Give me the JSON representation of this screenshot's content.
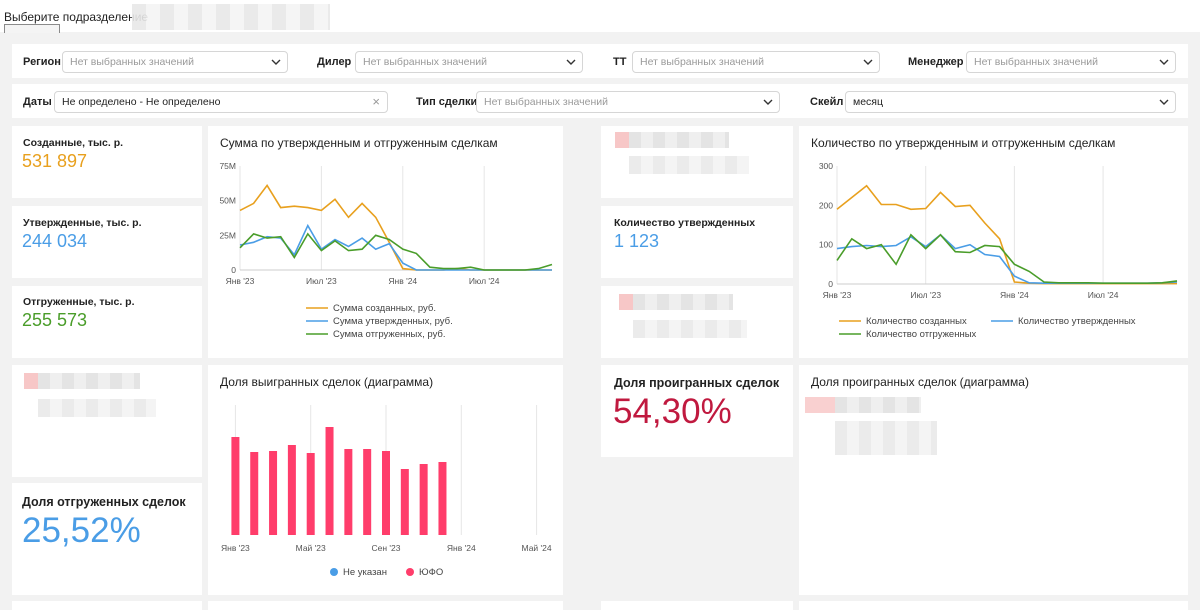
{
  "top": {
    "label": "Выберите подразделение"
  },
  "filters": {
    "region": {
      "label": "Регион",
      "placeholder": "Нет выбранных значений"
    },
    "dealer": {
      "label": "Дилер",
      "placeholder": "Нет выбранных значений"
    },
    "tt": {
      "label": "ТТ",
      "placeholder": "Нет выбранных значений"
    },
    "manager": {
      "label": "Менеджер",
      "placeholder": "Нет выбранных значений"
    },
    "dates": {
      "label": "Даты",
      "value": "Не определено - Не определено"
    },
    "deal_type": {
      "label": "Тип сделки",
      "placeholder": "Нет выбранных значений"
    },
    "scale": {
      "label": "Скейл",
      "value": "месяц"
    }
  },
  "kpi": {
    "created": {
      "title": "Созданные, тыс. р.",
      "value": "531 897",
      "color": "#e8a01e"
    },
    "approved": {
      "title": "Утвержденные, тыс. р.",
      "value": "244 034",
      "color": "#4a9de6"
    },
    "shipped": {
      "title": "Отгруженные, тыс. р.",
      "value": "255 573",
      "color": "#4a9d2a"
    },
    "approved_count": {
      "title": "Количество утвержденных",
      "value": "1 123",
      "color": "#4a9de6"
    },
    "shipped_share": {
      "title": "Доля отгруженных сделок",
      "value": "25,52%",
      "color": "#4a9de6"
    },
    "lost_share": {
      "title": "Доля проигранных сделок",
      "value": "54,30%",
      "color": "#c0193f"
    }
  },
  "charts": {
    "sum_title": "Сумма по утвержденным и отгруженным сделкам",
    "count_title": "Количество по утвержденным и отгруженным сделкам",
    "won_title": "Доля выигранных сделок (диаграмма)",
    "lost_title": "Доля проигранных сделок (диаграмма)"
  },
  "chart_data": [
    {
      "type": "line",
      "title": "Сумма по утвержденным и отгруженным сделкам",
      "y_ticks": [
        "0",
        "25M",
        "50M",
        "75M"
      ],
      "x_ticks": [
        "Янв '23",
        "Июл '23",
        "Янв '24",
        "Июл '24"
      ],
      "ylim": [
        0,
        75
      ],
      "n": 24,
      "series": [
        {
          "name": "Сумма созданных, руб.",
          "color": "#e8a01e",
          "values": [
            43,
            48,
            61,
            45,
            46,
            45,
            43,
            51,
            38,
            48,
            38,
            20,
            1,
            0,
            0,
            0,
            1,
            0,
            0,
            0,
            0,
            0,
            0,
            0
          ]
        },
        {
          "name": "Сумма утвержденных, руб.",
          "color": "#4a9de6",
          "values": [
            18,
            20,
            24,
            23,
            11,
            32,
            15,
            22,
            17,
            23,
            15,
            19,
            5,
            0,
            0,
            0,
            0,
            0,
            0,
            0,
            0,
            0,
            0,
            0
          ]
        },
        {
          "name": "Сумма отгруженных, руб.",
          "color": "#4a9d2a",
          "values": [
            16,
            26,
            23,
            24,
            9,
            26,
            14,
            21,
            14,
            15,
            25,
            22,
            15,
            12,
            2,
            1,
            1,
            2,
            0,
            0,
            0,
            0,
            1,
            4
          ]
        }
      ]
    },
    {
      "type": "line",
      "title": "Количество по утвержденным и отгруженным сделкам",
      "y_ticks": [
        "0",
        "100",
        "200",
        "300"
      ],
      "x_ticks": [
        "Янв '23",
        "Июл '23",
        "Янв '24",
        "Июл '24"
      ],
      "ylim": [
        0,
        300
      ],
      "n": 24,
      "series": [
        {
          "name": "Количество созданных",
          "color": "#e8a01e",
          "values": [
            190,
            220,
            250,
            202,
            202,
            190,
            192,
            233,
            197,
            200,
            155,
            115,
            5,
            2,
            1,
            1,
            1,
            1,
            1,
            1,
            1,
            1,
            1,
            1
          ]
        },
        {
          "name": "Количество утвержденных",
          "color": "#4a9de6",
          "values": [
            90,
            95,
            98,
            95,
            98,
            120,
            95,
            125,
            90,
            100,
            75,
            70,
            20,
            3,
            2,
            2,
            2,
            2,
            2,
            2,
            2,
            2,
            3,
            5
          ]
        },
        {
          "name": "Количество отгруженных",
          "color": "#4a9d2a",
          "values": [
            60,
            115,
            90,
            100,
            50,
            125,
            90,
            125,
            82,
            80,
            98,
            95,
            50,
            32,
            5,
            3,
            3,
            3,
            2,
            2,
            2,
            2,
            3,
            8
          ]
        }
      ]
    },
    {
      "type": "bar",
      "title": "Доля выигранных сделок (диаграмма)",
      "x_ticks": [
        "Янв '23",
        "Май '23",
        "Сен '23",
        "Янв '24",
        "Май '24"
      ],
      "legend": [
        {
          "name": "Не указан",
          "color": "#4a9de6"
        },
        {
          "name": "ЮФО",
          "color": "#ff3d6b"
        }
      ],
      "ylim": [
        0,
        130
      ],
      "categories": [
        "Янв '23",
        "Фев '23",
        "Мар '23",
        "Апр '23",
        "Май '23",
        "Июн '23",
        "Июл '23",
        "Авг '23",
        "Сен '23",
        "Окт '23",
        "Ноя '23",
        "Дек '23"
      ],
      "series": [
        {
          "name": "ЮФО",
          "color": "#ff3d6b",
          "values": [
            98,
            83,
            84,
            90,
            82,
            108,
            86,
            86,
            84,
            66,
            71,
            73
          ]
        }
      ]
    }
  ]
}
